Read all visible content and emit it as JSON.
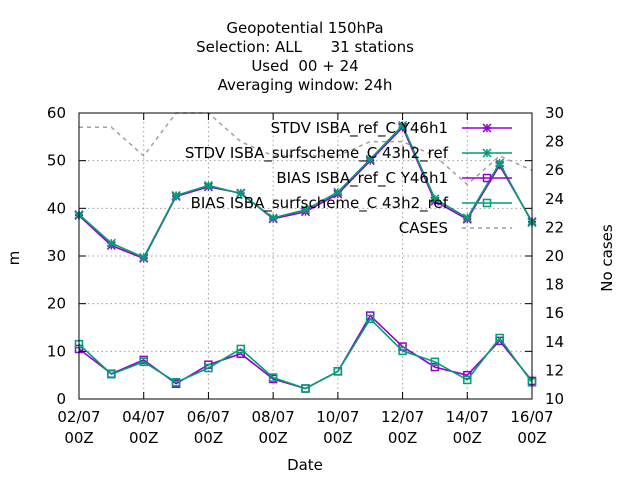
{
  "chart_data": {
    "type": "line",
    "title": [
      "Geopotential 150hPa",
      "Selection: ALL      31 stations",
      "Used  00 + 24",
      "Averaging window: 24h"
    ],
    "xlabel": "Date",
    "ylabel": "m",
    "y2label": "No cases",
    "ylim": [
      0,
      60
    ],
    "y2lim": [
      10,
      30
    ],
    "yticks": [
      "0",
      "10",
      "20",
      "30",
      "40",
      "50",
      "60"
    ],
    "y2ticks": [
      "10",
      "12",
      "14",
      "16",
      "18",
      "20",
      "22",
      "24",
      "26",
      "28",
      "30"
    ],
    "xticks": [
      {
        "day": 0,
        "l1": "02/07",
        "l2": "00Z"
      },
      {
        "day": 2,
        "l1": "04/07",
        "l2": "00Z"
      },
      {
        "day": 4,
        "l1": "06/07",
        "l2": "00Z"
      },
      {
        "day": 6,
        "l1": "08/07",
        "l2": "00Z"
      },
      {
        "day": 8,
        "l1": "10/07",
        "l2": "00Z"
      },
      {
        "day": 10,
        "l1": "12/07",
        "l2": "00Z"
      },
      {
        "day": 12,
        "l1": "14/07",
        "l2": "00Z"
      },
      {
        "day": 14,
        "l1": "16/07",
        "l2": "00Z"
      }
    ],
    "x_dates": [
      "02/07",
      "03/07",
      "04/07",
      "05/07",
      "06/07",
      "07/07",
      "08/07",
      "09/07",
      "10/07",
      "11/07",
      "12/07",
      "13/07",
      "14/07",
      "15/07",
      "16/07"
    ],
    "grid": true,
    "legend_position": "top-right",
    "series": [
      {
        "name": "STDV ISBA_ref_C Y46h1",
        "color": "#9400d3",
        "marker": "x",
        "axis": "y1",
        "values": [
          38.5,
          32.2,
          29.5,
          42.5,
          44.5,
          43.2,
          37.8,
          39.3,
          43.0,
          50.0,
          57.0,
          41.5,
          37.7,
          49.0,
          37.2
        ]
      },
      {
        "name": "STDV ISBA_surfscheme_C 43h2_ref",
        "color": "#009e73",
        "marker": "x",
        "axis": "y1",
        "values": [
          38.7,
          32.7,
          29.7,
          42.7,
          44.8,
          43.1,
          38.0,
          39.7,
          43.4,
          50.3,
          57.4,
          42.0,
          38.0,
          49.5,
          37.0
        ]
      },
      {
        "name": "BIAS ISBA_ref_C Y46h1",
        "color": "#9400d3",
        "marker": "square",
        "axis": "y1",
        "values": [
          10.5,
          5.3,
          8.2,
          3.2,
          7.2,
          9.5,
          4.2,
          2.2,
          5.8,
          17.5,
          11.0,
          6.7,
          5.0,
          12.2,
          3.8
        ]
      },
      {
        "name": "BIAS ISBA_surfscheme_C 43h2_ref",
        "color": "#009e73",
        "marker": "square",
        "axis": "y1",
        "values": [
          11.5,
          5.2,
          7.8,
          3.5,
          6.5,
          10.5,
          4.5,
          2.2,
          5.8,
          16.8,
          10.1,
          7.8,
          4.0,
          12.8,
          3.5
        ]
      },
      {
        "name": "CASES",
        "color": "#a0a0a0",
        "marker": "none",
        "dashed": true,
        "axis": "y2",
        "values": [
          29,
          29,
          27,
          30,
          30,
          28,
          27,
          27,
          27,
          28,
          28,
          27,
          25,
          27,
          26
        ]
      }
    ]
  }
}
